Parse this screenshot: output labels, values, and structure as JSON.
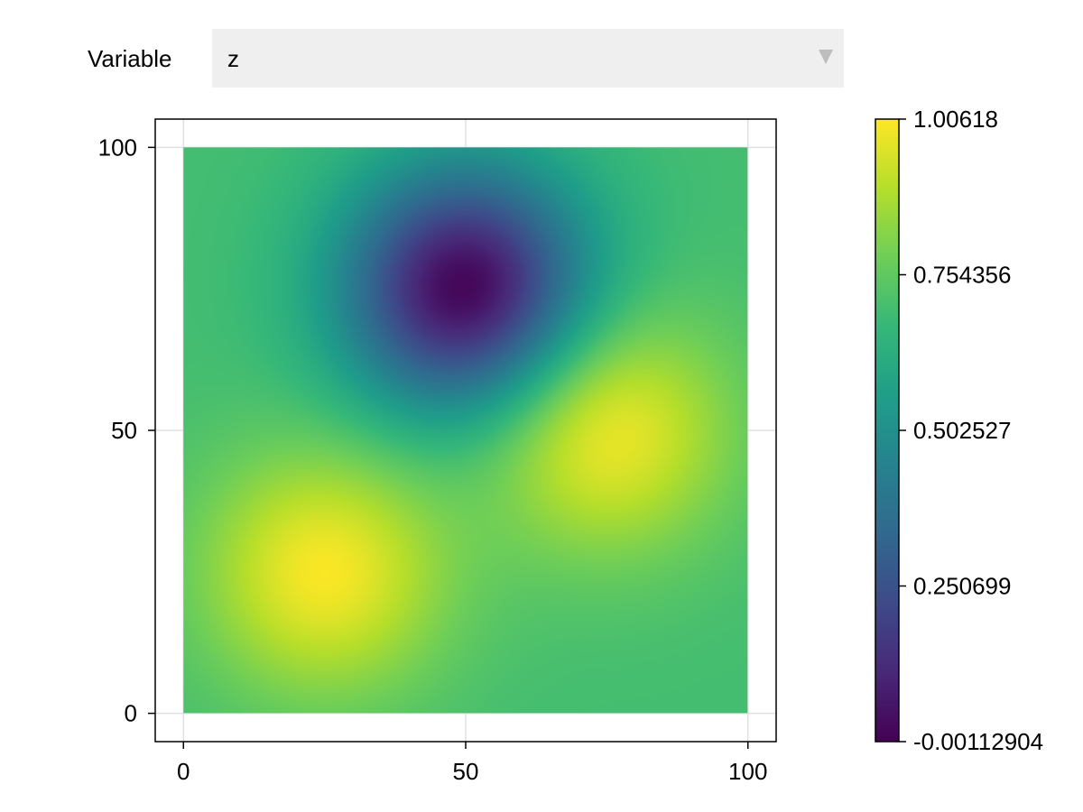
{
  "controls": {
    "variable_label": "Variable",
    "variable_value": "z"
  },
  "colors": {
    "viridis": [
      "#440154",
      "#482878",
      "#3e4a89",
      "#31688e",
      "#26828e",
      "#1f9e89",
      "#35b779",
      "#6ece58",
      "#b5de2b",
      "#fde725"
    ],
    "grid": "#e0e0e0",
    "frame": "#000000"
  },
  "icons": {
    "dropdown": "chevron-down-icon"
  },
  "chart_data": {
    "type": "heatmap",
    "title": "",
    "xlabel": "",
    "ylabel": "",
    "xlim": [
      -5,
      105
    ],
    "ylim": [
      -5,
      105
    ],
    "x_ticks": [
      "0",
      "50",
      "100"
    ],
    "y_ticks": [
      "0",
      "50",
      "100"
    ],
    "grid": true,
    "colormap": "viridis",
    "z_range": [
      -0.00112904,
      1.00618
    ],
    "colorbar_ticks": [
      "1.00618",
      "0.754356",
      "0.502527",
      "0.250699",
      "-0.00112904"
    ],
    "field": {
      "x_range": [
        0,
        100
      ],
      "y_range": [
        0,
        100
      ],
      "base_value": 0.7,
      "features": [
        {
          "x": 25,
          "y": 25,
          "amplitude": 0.3,
          "sigma": 15
        },
        {
          "x": 75,
          "y": 50,
          "amplitude": 0.3,
          "sigma": 15
        },
        {
          "x": 50,
          "y": 75,
          "amplitude": -0.7,
          "sigma": 15
        }
      ]
    }
  }
}
